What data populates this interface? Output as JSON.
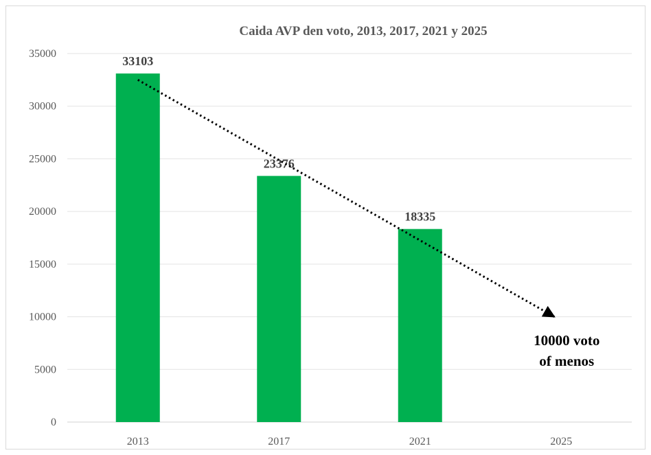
{
  "chart_data": {
    "type": "bar",
    "title": "Caida AVP den voto, 2013, 2017, 2021 y 2025",
    "categories": [
      "2013",
      "2017",
      "2021",
      "2025"
    ],
    "values": [
      33103,
      23376,
      18335,
      null
    ],
    "data_labels": [
      "33103",
      "23376",
      "18335",
      ""
    ],
    "ylim": [
      0,
      35000
    ],
    "yticks": [
      0,
      5000,
      10000,
      15000,
      20000,
      25000,
      30000,
      35000
    ],
    "ytick_labels": [
      "0",
      "5000",
      "10000",
      "15000",
      "20000",
      "25000",
      "30000",
      "35000"
    ],
    "xlabel": "",
    "ylabel": "",
    "grid": true,
    "bar_color": "#00b050",
    "trend_arrow": {
      "from": {
        "x": "2013",
        "y": 32500
      },
      "to": {
        "x": "2025",
        "y": 10000
      },
      "style": "dotted"
    },
    "annotation": {
      "lines": [
        "10000 voto",
        "of menos"
      ]
    }
  }
}
